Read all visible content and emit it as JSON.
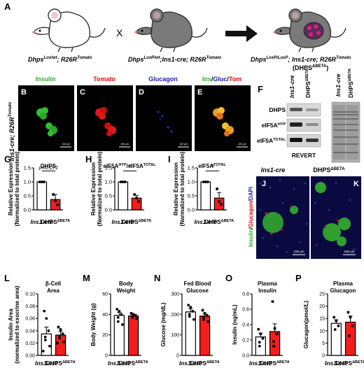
{
  "panelA": {
    "letter": "A",
    "mouse1": {
      "a": "Dhps",
      "b": "Lox/wt",
      "c": "; R26R",
      "d": "Tomato"
    },
    "cross": "X",
    "mouse2": {
      "a": "Dhps",
      "b": "LoxP/wt",
      "c": ";Ins1-cre; R26R",
      "d": "Tomato"
    },
    "mouse3": {
      "a": "Dhps",
      "b": "LoxP/LoxP",
      "c": "; Ins1-cre; R26R",
      "d": "Tomato",
      "e": "(DHPS",
      "f": "ΔBETA",
      "g": ")"
    }
  },
  "micrographs": {
    "rowlabel": "Ins1-cre; R26R",
    "rowlabel_sup": "Tomato",
    "panels": [
      {
        "letter": "B",
        "title": "Insulin",
        "color": "#2fae2f"
      },
      {
        "letter": "C",
        "title": "Tomato",
        "color": "#e01010"
      },
      {
        "letter": "D",
        "title": "Glucagon",
        "color": "#2020a0"
      },
      {
        "letter": "E",
        "title_parts": [
          "Ins",
          "/",
          "Gluc",
          "/",
          "Tom"
        ],
        "title_colors": [
          "#2fae2f",
          "#000000",
          "#2020a0",
          "#000000",
          "#e01010"
        ]
      }
    ],
    "scalebar": "100 μm"
  },
  "panelF": {
    "letter": "F",
    "lane1": "Ins1-cre",
    "lane2": "DHPS",
    "lane2_sup": "ΔBETA",
    "rows": [
      {
        "a": "DHPS",
        "b": ""
      },
      {
        "a": "eIF5A",
        "b": "HYP"
      },
      {
        "a": "eIF5A",
        "b": "TOTAL"
      }
    ],
    "revert": "REVERT"
  },
  "panelJK": {
    "J": "J",
    "K": "K",
    "col1": "Ins1-cre",
    "col2": "DHPS",
    "col2_sup": "ΔBETA",
    "ylab": [
      "Insulin",
      "/",
      "Glucagon",
      "/",
      "DAPI"
    ],
    "ylab_colors": [
      "#2fae2f",
      "#000000",
      "#e01010",
      "#000000",
      "#2020c0"
    ],
    "scalebar": "100 μm"
  },
  "chart_data": [
    {
      "letter": "G",
      "type": "bar",
      "title": "DHPS",
      "ylabel": [
        "Relative Expression",
        "(Normalized to total protein)"
      ],
      "categories": [
        "Ins1-cre",
        "DHPS"
      ],
      "cat_sup": [
        "",
        "ΔBETA"
      ],
      "values": [
        1.0,
        0.37
      ],
      "err": [
        0,
        0.18
      ],
      "ylim": [
        0,
        1.5
      ],
      "ticks": [
        "0.0",
        "0.5",
        "1.0",
        "1.5"
      ],
      "points": [
        [
          1.0,
          1.0,
          1.0
        ],
        [
          0.55,
          0.32,
          0.18
        ]
      ],
      "annotation": "p=0.071"
    },
    {
      "letter": "H",
      "type": "bar",
      "title": "eIF5A",
      "title_sup": "HYP",
      "title_mid": "/eIF5A",
      "title_sup2": "TOTAL",
      "ylabel": [
        "Relative Expression",
        "(Normalized to total protein)"
      ],
      "categories": [
        "Ins1-cre",
        "DHPS"
      ],
      "cat_sup": [
        "",
        "ΔBETA"
      ],
      "values": [
        1.0,
        0.42
      ],
      "err": [
        0,
        0.1
      ],
      "ylim": [
        0,
        1.5
      ],
      "ticks": [
        "0.0",
        "0.5",
        "1.0",
        "1.5"
      ],
      "points": [
        [
          1.0,
          1.0,
          1.0
        ],
        [
          0.55,
          0.42,
          0.3
        ]
      ],
      "annotation": "*"
    },
    {
      "letter": "I",
      "type": "bar",
      "title": "eIF5A",
      "title_sup": "TOTAL",
      "ylabel": [
        "Relative Expression",
        "(Normalized to total protein)"
      ],
      "categories": [
        "Ins1-cre",
        "DHPS"
      ],
      "cat_sup": [
        "",
        "ΔBETA"
      ],
      "values": [
        1.0,
        0.42
      ],
      "err": [
        0,
        0.2
      ],
      "ylim": [
        0,
        1.5
      ],
      "ticks": [
        "0.0",
        "0.5",
        "1.0",
        "1.5"
      ],
      "points": [
        [
          1.0,
          1.0,
          1.0
        ],
        [
          0.75,
          0.3,
          0.2
        ]
      ],
      "annotation": "*"
    },
    {
      "letter": "L",
      "type": "bar",
      "title": "β-Cell Area",
      "ylabel": [
        "Insulin Area",
        "(normalized to exocrine area)"
      ],
      "categories": [
        "Ins1-cre",
        "DHPS"
      ],
      "cat_sup": [
        "",
        "ΔBETA"
      ],
      "values": [
        0.035,
        0.033
      ],
      "err": [
        0.011,
        0.006
      ],
      "ylim": [
        0,
        0.1
      ],
      "ticks": [
        "0.00",
        "0.02",
        "0.04",
        "0.06",
        "0.08",
        "0.10"
      ],
      "points": [
        [
          0.072,
          0.06,
          0.04,
          0.03,
          0.025,
          0.015,
          0.007
        ],
        [
          0.046,
          0.042,
          0.035,
          0.03,
          0.028,
          0.022,
          0.02
        ]
      ]
    },
    {
      "letter": "M",
      "type": "bar",
      "title": "Body Weight",
      "ylabel": [
        "Body Weight (g)"
      ],
      "categories": [
        "Ins1-cre",
        "DHPS"
      ],
      "cat_sup": [
        "",
        "ΔBETA"
      ],
      "values": [
        39,
        38.5
      ],
      "err": [
        3,
        1.5
      ],
      "ylim": [
        0,
        60
      ],
      "ticks": [
        "0",
        "20",
        "40",
        "60"
      ],
      "points": [
        [
          45,
          43,
          40,
          37,
          33,
          30
        ],
        [
          41,
          40,
          39,
          38,
          37,
          36
        ]
      ]
    },
    {
      "letter": "N",
      "type": "bar",
      "title": "Fed Blood Glucose",
      "ylabel": [
        "Glucose (mg/dL)"
      ],
      "categories": [
        "Ins1-cre",
        "DHPS"
      ],
      "cat_sup": [
        "",
        "ΔBETA"
      ],
      "values": [
        212,
        192
      ],
      "err": [
        15,
        10
      ],
      "ylim": [
        0,
        300
      ],
      "ticks": [
        "0",
        "100",
        "200",
        "300"
      ],
      "points": [
        [
          245,
          235,
          215,
          200,
          190,
          175
        ],
        [
          220,
          205,
          195,
          185,
          175,
          165
        ]
      ]
    },
    {
      "letter": "O",
      "type": "bar",
      "title": "Plasma Insulin",
      "ylabel": [
        "Insulin (ng/mL)"
      ],
      "categories": [
        "Ins1-cre",
        "DHPS"
      ],
      "cat_sup": [
        "",
        "ΔBETA"
      ],
      "values": [
        0.24,
        0.31
      ],
      "err": [
        0.05,
        0.1
      ],
      "ylim": [
        0,
        0.8
      ],
      "ticks": [
        "0.0",
        "0.2",
        "0.4",
        "0.6",
        "0.8"
      ],
      "points": [
        [
          0.34,
          0.28,
          0.22,
          0.17,
          0.12
        ],
        [
          0.7,
          0.35,
          0.28,
          0.18,
          0.12
        ]
      ]
    },
    {
      "letter": "P",
      "type": "bar",
      "title": "Plasma Glucagon",
      "ylabel": [
        "Glucagon(pmol/L)"
      ],
      "categories": [
        "Ins1-cre",
        "DHPS"
      ],
      "cat_sup": [
        "",
        "ΔBETA"
      ],
      "values": [
        13,
        13.5
      ],
      "err": [
        1.5,
        2.5
      ],
      "ylim": [
        0,
        25
      ],
      "ticks": [
        "0",
        "5",
        "10",
        "15",
        "20",
        "25"
      ],
      "points": [
        [
          15.5,
          14,
          12,
          10.5
        ],
        [
          17.5,
          15.5,
          12,
          8
        ]
      ]
    }
  ]
}
